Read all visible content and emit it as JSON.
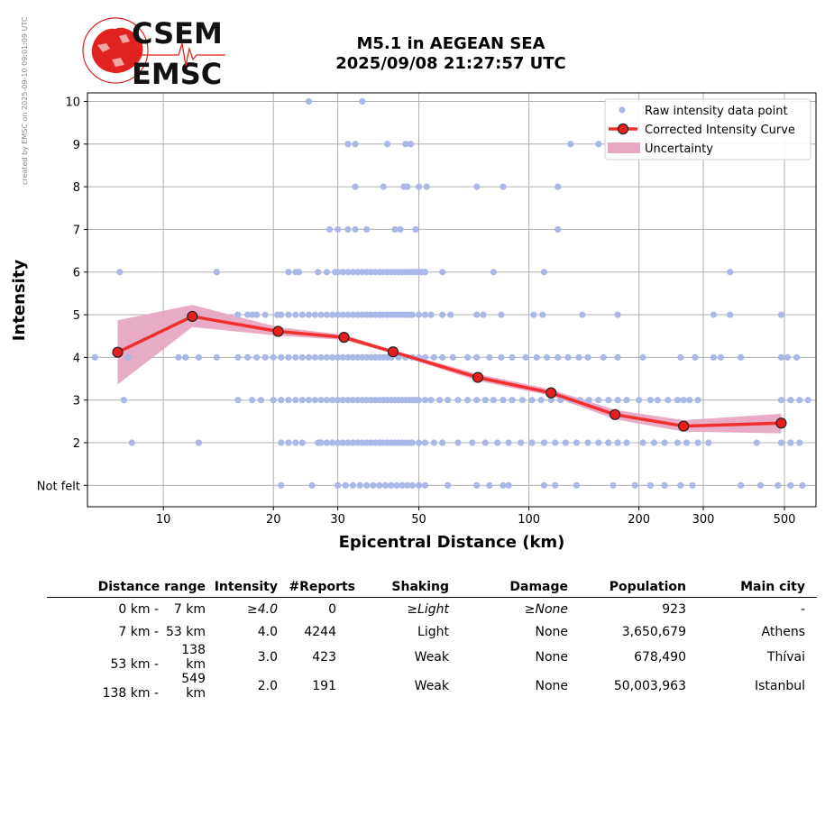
{
  "side_note": "created by EMSC on 2025-09-10 09:01:09 UTC",
  "logo": {
    "line1": "CSEM",
    "line2": "EMSC",
    "color": "#e0231f"
  },
  "title": {
    "line1": "M5.1 in AEGEAN SEA",
    "line2": "2025/09/08 21:27:57 UTC"
  },
  "chart_data": {
    "type": "scatter",
    "title": "M5.1 in AEGEAN SEA 2025/09/08 21:27:57 UTC",
    "xlabel": "Epicentral Distance (km)",
    "ylabel": "Intensity",
    "x_scale": "log",
    "xlim": [
      6.2,
      610
    ],
    "ylim": [
      0.5,
      10.2
    ],
    "x_ticks": [
      10,
      20,
      30,
      50,
      100,
      200,
      300,
      500
    ],
    "y_ticks": [
      1,
      2,
      3,
      4,
      5,
      6,
      7,
      8,
      9,
      10
    ],
    "y_tick_labels": [
      "Not felt",
      "2",
      "3",
      "4",
      "5",
      "6",
      "7",
      "8",
      "9",
      "10"
    ],
    "grid": true,
    "legend_position": "top-right",
    "legend": [
      "Raw intensity data point",
      "Corrected Intensity Curve",
      "Uncertainty"
    ],
    "colors": {
      "raw": "#aab8e8",
      "curve": "#f03030",
      "marker": "#e61e1e",
      "band": "#e8a8c4"
    },
    "raw_points": {
      "10": [
        [
          25,
          10
        ],
        [
          35,
          10
        ]
      ],
      "9": [
        [
          32,
          9
        ],
        [
          33.5,
          9
        ],
        [
          41,
          9
        ],
        [
          46,
          9
        ],
        [
          47.5,
          9
        ],
        [
          130,
          9
        ],
        [
          155,
          9
        ]
      ],
      "8": [
        [
          33.5,
          8
        ],
        [
          40,
          8
        ],
        [
          45.5,
          8
        ],
        [
          46.5,
          8
        ],
        [
          50,
          8
        ],
        [
          52.5,
          8
        ],
        [
          72,
          8
        ],
        [
          85,
          8
        ],
        [
          120,
          8
        ]
      ],
      "7": [
        [
          28.5,
          7
        ],
        [
          30,
          7
        ],
        [
          32,
          7
        ],
        [
          33.5,
          7
        ],
        [
          36,
          7
        ],
        [
          43,
          7
        ],
        [
          44.5,
          7
        ],
        [
          49,
          7
        ],
        [
          120,
          7
        ]
      ],
      "6": [
        [
          7.6,
          6
        ],
        [
          14,
          6
        ],
        [
          22,
          6
        ],
        [
          23,
          6
        ],
        [
          23.5,
          6
        ],
        [
          26.5,
          6
        ],
        [
          28,
          6
        ],
        [
          29.5,
          6
        ],
        [
          30,
          6
        ],
        [
          31,
          6
        ],
        [
          32,
          6
        ],
        [
          33,
          6
        ],
        [
          34,
          6
        ],
        [
          35,
          6
        ],
        [
          36,
          6
        ],
        [
          37,
          6
        ],
        [
          38,
          6
        ],
        [
          39,
          6
        ],
        [
          40,
          6
        ],
        [
          41,
          6
        ],
        [
          42,
          6
        ],
        [
          43,
          6
        ],
        [
          44,
          6
        ],
        [
          45,
          6
        ],
        [
          46,
          6
        ],
        [
          47,
          6
        ],
        [
          48,
          6
        ],
        [
          49,
          6
        ],
        [
          50,
          6
        ],
        [
          51,
          6
        ],
        [
          52,
          6
        ],
        [
          58,
          6
        ],
        [
          80,
          6
        ],
        [
          110,
          6
        ],
        [
          355,
          6
        ]
      ],
      "5": [
        [
          16,
          5
        ],
        [
          17,
          5
        ],
        [
          17.5,
          5
        ],
        [
          18,
          5
        ],
        [
          19,
          5
        ],
        [
          20.5,
          5
        ],
        [
          21,
          5
        ],
        [
          22,
          5
        ],
        [
          23,
          5
        ],
        [
          24,
          5
        ],
        [
          25,
          5
        ],
        [
          26,
          5
        ],
        [
          27,
          5
        ],
        [
          28,
          5
        ],
        [
          29,
          5
        ],
        [
          30,
          5
        ],
        [
          31,
          5
        ],
        [
          32,
          5
        ],
        [
          33,
          5
        ],
        [
          34,
          5
        ],
        [
          35,
          5
        ],
        [
          36,
          5
        ],
        [
          37,
          5
        ],
        [
          38,
          5
        ],
        [
          39,
          5
        ],
        [
          40,
          5
        ],
        [
          41,
          5
        ],
        [
          42,
          5
        ],
        [
          43,
          5
        ],
        [
          44,
          5
        ],
        [
          45,
          5
        ],
        [
          46,
          5
        ],
        [
          47,
          5
        ],
        [
          48,
          5
        ],
        [
          50,
          5
        ],
        [
          52,
          5
        ],
        [
          54,
          5
        ],
        [
          58,
          5
        ],
        [
          61,
          5
        ],
        [
          72,
          5
        ],
        [
          75,
          5
        ],
        [
          84,
          5
        ],
        [
          103,
          5
        ],
        [
          109,
          5
        ],
        [
          140,
          5
        ],
        [
          175,
          5
        ],
        [
          320,
          5
        ],
        [
          355,
          5
        ],
        [
          490,
          5
        ]
      ],
      "4": [
        [
          6.5,
          4
        ],
        [
          8,
          4
        ],
        [
          11,
          4
        ],
        [
          11.5,
          4
        ],
        [
          12.5,
          4
        ],
        [
          14,
          4
        ],
        [
          16,
          4
        ],
        [
          17,
          4
        ],
        [
          18,
          4
        ],
        [
          19,
          4
        ],
        [
          20,
          4
        ],
        [
          21,
          4
        ],
        [
          22,
          4
        ],
        [
          23,
          4
        ],
        [
          24,
          4
        ],
        [
          25,
          4
        ],
        [
          26,
          4
        ],
        [
          27,
          4
        ],
        [
          28,
          4
        ],
        [
          29,
          4
        ],
        [
          30,
          4
        ],
        [
          31,
          4
        ],
        [
          32,
          4
        ],
        [
          33,
          4
        ],
        [
          34,
          4
        ],
        [
          35,
          4
        ],
        [
          36,
          4
        ],
        [
          37,
          4
        ],
        [
          38,
          4
        ],
        [
          39,
          4
        ],
        [
          40,
          4
        ],
        [
          41,
          4
        ],
        [
          42,
          4
        ],
        [
          44,
          4
        ],
        [
          46,
          4
        ],
        [
          48,
          4
        ],
        [
          50,
          4
        ],
        [
          52,
          4
        ],
        [
          55,
          4
        ],
        [
          58,
          4
        ],
        [
          62,
          4
        ],
        [
          68,
          4
        ],
        [
          72,
          4
        ],
        [
          78,
          4
        ],
        [
          84,
          4
        ],
        [
          90,
          4
        ],
        [
          98,
          4
        ],
        [
          105,
          4
        ],
        [
          112,
          4
        ],
        [
          120,
          4
        ],
        [
          128,
          4
        ],
        [
          137,
          4
        ],
        [
          145,
          4
        ],
        [
          160,
          4
        ],
        [
          175,
          4
        ],
        [
          205,
          4
        ],
        [
          260,
          4
        ],
        [
          285,
          4
        ],
        [
          320,
          4
        ],
        [
          335,
          4
        ],
        [
          380,
          4
        ],
        [
          490,
          4
        ],
        [
          510,
          4
        ],
        [
          540,
          4
        ]
      ],
      "3": [
        [
          7.8,
          3
        ],
        [
          16,
          3
        ],
        [
          17.5,
          3
        ],
        [
          18.5,
          3
        ],
        [
          20,
          3
        ],
        [
          21,
          3
        ],
        [
          22,
          3
        ],
        [
          23,
          3
        ],
        [
          24,
          3
        ],
        [
          25,
          3
        ],
        [
          26,
          3
        ],
        [
          27,
          3
        ],
        [
          28,
          3
        ],
        [
          29,
          3
        ],
        [
          30,
          3
        ],
        [
          31,
          3
        ],
        [
          32,
          3
        ],
        [
          33,
          3
        ],
        [
          34,
          3
        ],
        [
          35,
          3
        ],
        [
          36,
          3
        ],
        [
          37,
          3
        ],
        [
          38,
          3
        ],
        [
          39,
          3
        ],
        [
          40,
          3
        ],
        [
          41,
          3
        ],
        [
          42,
          3
        ],
        [
          43,
          3
        ],
        [
          44,
          3
        ],
        [
          45,
          3
        ],
        [
          46,
          3
        ],
        [
          47,
          3
        ],
        [
          48,
          3
        ],
        [
          49,
          3
        ],
        [
          50,
          3
        ],
        [
          52,
          3
        ],
        [
          54,
          3
        ],
        [
          57,
          3
        ],
        [
          60,
          3
        ],
        [
          64,
          3
        ],
        [
          68,
          3
        ],
        [
          72,
          3
        ],
        [
          76,
          3
        ],
        [
          80,
          3
        ],
        [
          85,
          3
        ],
        [
          90,
          3
        ],
        [
          96,
          3
        ],
        [
          102,
          3
        ],
        [
          108,
          3
        ],
        [
          115,
          3
        ],
        [
          122,
          3
        ],
        [
          130,
          3
        ],
        [
          138,
          3
        ],
        [
          146,
          3
        ],
        [
          155,
          3
        ],
        [
          165,
          3
        ],
        [
          175,
          3
        ],
        [
          185,
          3
        ],
        [
          200,
          3
        ],
        [
          215,
          3
        ],
        [
          225,
          3
        ],
        [
          240,
          3
        ],
        [
          255,
          3
        ],
        [
          265,
          3
        ],
        [
          275,
          3
        ],
        [
          290,
          3
        ],
        [
          490,
          3
        ],
        [
          520,
          3
        ],
        [
          550,
          3
        ],
        [
          580,
          3
        ]
      ],
      "2": [
        [
          8.2,
          2
        ],
        [
          12.5,
          2
        ],
        [
          21,
          2
        ],
        [
          22,
          2
        ],
        [
          23,
          2
        ],
        [
          24,
          2
        ],
        [
          26.5,
          2
        ],
        [
          27,
          2
        ],
        [
          28,
          2
        ],
        [
          29,
          2
        ],
        [
          30,
          2
        ],
        [
          31,
          2
        ],
        [
          32,
          2
        ],
        [
          33,
          2
        ],
        [
          34,
          2
        ],
        [
          35,
          2
        ],
        [
          36,
          2
        ],
        [
          37,
          2
        ],
        [
          38,
          2
        ],
        [
          39,
          2
        ],
        [
          40,
          2
        ],
        [
          41,
          2
        ],
        [
          42,
          2
        ],
        [
          43,
          2
        ],
        [
          44,
          2
        ],
        [
          45,
          2
        ],
        [
          46,
          2
        ],
        [
          47,
          2
        ],
        [
          48,
          2
        ],
        [
          50,
          2
        ],
        [
          52,
          2
        ],
        [
          55,
          2
        ],
        [
          58,
          2
        ],
        [
          64,
          2
        ],
        [
          70,
          2
        ],
        [
          76,
          2
        ],
        [
          82,
          2
        ],
        [
          88,
          2
        ],
        [
          95,
          2
        ],
        [
          102,
          2
        ],
        [
          110,
          2
        ],
        [
          118,
          2
        ],
        [
          126,
          2
        ],
        [
          135,
          2
        ],
        [
          145,
          2
        ],
        [
          155,
          2
        ],
        [
          165,
          2
        ],
        [
          175,
          2
        ],
        [
          185,
          2
        ],
        [
          205,
          2
        ],
        [
          220,
          2
        ],
        [
          235,
          2
        ],
        [
          255,
          2
        ],
        [
          270,
          2
        ],
        [
          290,
          2
        ],
        [
          310,
          2
        ],
        [
          420,
          2
        ],
        [
          490,
          2
        ],
        [
          520,
          2
        ],
        [
          550,
          2
        ]
      ],
      "1": [
        [
          21,
          1
        ],
        [
          25.5,
          1
        ],
        [
          30,
          1
        ],
        [
          31.5,
          1
        ],
        [
          33,
          1
        ],
        [
          34.5,
          1
        ],
        [
          36,
          1
        ],
        [
          37.5,
          1
        ],
        [
          39,
          1
        ],
        [
          40.5,
          1
        ],
        [
          42,
          1
        ],
        [
          43.5,
          1
        ],
        [
          45,
          1
        ],
        [
          46.5,
          1
        ],
        [
          48,
          1
        ],
        [
          50,
          1
        ],
        [
          52,
          1
        ],
        [
          60,
          1
        ],
        [
          72,
          1
        ],
        [
          78,
          1
        ],
        [
          85,
          1
        ],
        [
          88,
          1
        ],
        [
          110,
          1
        ],
        [
          118,
          1
        ],
        [
          135,
          1
        ],
        [
          170,
          1
        ],
        [
          195,
          1
        ],
        [
          215,
          1
        ],
        [
          235,
          1
        ],
        [
          260,
          1
        ],
        [
          280,
          1
        ],
        [
          380,
          1
        ],
        [
          430,
          1
        ],
        [
          480,
          1
        ],
        [
          520,
          1
        ],
        [
          560,
          1
        ]
      ]
    },
    "curve": [
      {
        "x": 7.5,
        "y": 4.12,
        "lo": 3.37,
        "hi": 4.87
      },
      {
        "x": 12,
        "y": 4.96,
        "lo": 4.71,
        "hi": 5.23
      },
      {
        "x": 20.6,
        "y": 4.61,
        "lo": 4.51,
        "hi": 4.71
      },
      {
        "x": 31.2,
        "y": 4.47,
        "lo": 4.41,
        "hi": 4.53
      },
      {
        "x": 42.5,
        "y": 4.13,
        "lo": 4.09,
        "hi": 4.17
      },
      {
        "x": 72.5,
        "y": 3.53,
        "lo": 3.45,
        "hi": 3.61
      },
      {
        "x": 115,
        "y": 3.17,
        "lo": 3.1,
        "hi": 3.25
      },
      {
        "x": 172,
        "y": 2.66,
        "lo": 2.55,
        "hi": 2.77
      },
      {
        "x": 265,
        "y": 2.39,
        "lo": 2.26,
        "hi": 2.53
      },
      {
        "x": 490,
        "y": 2.46,
        "lo": 2.22,
        "hi": 2.68
      }
    ]
  },
  "table": {
    "headers": [
      "Distance range",
      "Intensity",
      "#Reports",
      "Shaking",
      "Damage",
      "Population",
      "Main city"
    ],
    "rows": [
      {
        "dist_from": "0 km -",
        "dist_to": "7 km",
        "intensity": "≥4.0",
        "reports": "0",
        "shaking": "≥Light",
        "damage": "≥None",
        "population": "923",
        "city": "-"
      },
      {
        "dist_from": "7 km -",
        "dist_to": "53 km",
        "intensity": "4.0",
        "reports": "4244",
        "shaking": "Light",
        "damage": "None",
        "population": "3,650,679",
        "city": "Athens"
      },
      {
        "dist_from": "53 km -",
        "dist_to": "138 km",
        "intensity": "3.0",
        "reports": "423",
        "shaking": "Weak",
        "damage": "None",
        "population": "678,490",
        "city": "Thívai"
      },
      {
        "dist_from": "138 km -",
        "dist_to": "549 km",
        "intensity": "2.0",
        "reports": "191",
        "shaking": "Weak",
        "damage": "None",
        "population": "50,003,963",
        "city": "Istanbul"
      }
    ]
  }
}
